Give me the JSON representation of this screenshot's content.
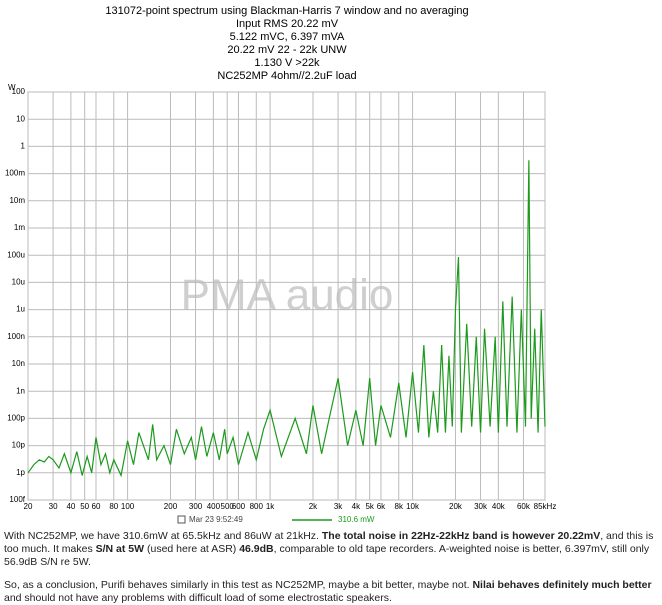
{
  "chart_data": {
    "type": "line",
    "title_lines": [
      "131072-point spectrum using Blackman-Harris 7 window and no averaging",
      "Input RMS 20.22 mV",
      "5.122 mVC, 6.397 mVA",
      "20.22 mV 22 - 22k UNW",
      "1.130 V >22k",
      "NC252MP 4ohm//2.2uF load"
    ],
    "y_label": "W",
    "watermark": "PMA audio",
    "legend_title": "Mar 23 9:52:49",
    "xscale": "log",
    "yscale": "log",
    "grid": true,
    "xlim": [
      20,
      85000
    ],
    "ylim": [
      1e-13,
      100
    ],
    "xticks": [
      20,
      30,
      40,
      50,
      60,
      80,
      100,
      200,
      300,
      400,
      500,
      600,
      800,
      {
        "value": 1000,
        "label": "1k"
      },
      {
        "value": 2000,
        "label": "2k"
      },
      {
        "value": 3000,
        "label": "3k"
      },
      {
        "value": 4000,
        "label": "4k"
      },
      {
        "value": 5000,
        "label": "5k"
      },
      {
        "value": 6000,
        "label": "6k"
      },
      {
        "value": 8000,
        "label": "8k"
      },
      {
        "value": 10000,
        "label": "10k"
      },
      {
        "value": 20000,
        "label": "20k"
      },
      {
        "value": 30000,
        "label": "30k"
      },
      {
        "value": 40000,
        "label": "40k"
      },
      {
        "value": 60000,
        "label": "60k"
      },
      {
        "value": 85000,
        "label": "85kHz"
      }
    ],
    "yticks": [
      100,
      10,
      1,
      {
        "value": 0.1,
        "label": "100m"
      },
      {
        "value": 0.01,
        "label": "10m"
      },
      {
        "value": 0.001,
        "label": "1m"
      },
      {
        "value": 0.0001,
        "label": "100u"
      },
      {
        "value": 1e-05,
        "label": "10u"
      },
      {
        "value": 1e-06,
        "label": "1u"
      },
      {
        "value": 1e-07,
        "label": "100n"
      },
      {
        "value": 1e-08,
        "label": "10n"
      },
      {
        "value": 1e-09,
        "label": "1n"
      },
      {
        "value": 1e-10,
        "label": "100p"
      },
      {
        "value": 1e-11,
        "label": "10p"
      },
      {
        "value": 1e-12,
        "label": "1p"
      },
      {
        "value": 1e-13,
        "label": "100f"
      }
    ],
    "x": [
      20,
      22,
      24,
      26,
      28,
      30,
      33,
      36,
      40,
      44,
      48,
      52,
      56,
      60,
      65,
      70,
      75,
      80,
      90,
      100,
      110,
      120,
      140,
      150,
      160,
      180,
      200,
      220,
      250,
      280,
      300,
      330,
      360,
      400,
      440,
      480,
      500,
      550,
      600,
      700,
      800,
      900,
      1000,
      1200,
      1500,
      1800,
      2000,
      2300,
      2600,
      3000,
      3500,
      4000,
      4500,
      5000,
      5500,
      6000,
      7000,
      8000,
      9000,
      10000,
      11000,
      12000,
      13000,
      14000,
      15000,
      16000,
      17000,
      18000,
      19000,
      20000,
      21000,
      22000,
      24000,
      26000,
      28000,
      30000,
      32000,
      35000,
      38000,
      40000,
      43000,
      46000,
      50000,
      54000,
      58000,
      62000,
      65500,
      68000,
      72000,
      76000,
      80000,
      85000
    ],
    "series": [
      {
        "name": "310.6 mW",
        "color": "#1c9a1c",
        "values": [
          1e-12,
          2e-12,
          3e-12,
          2.5e-12,
          4e-12,
          3e-12,
          1.5e-12,
          5e-12,
          1e-12,
          6e-12,
          8e-13,
          4e-12,
          1e-12,
          2e-11,
          2e-12,
          5e-12,
          1e-12,
          3e-12,
          8e-13,
          1.5e-11,
          2e-12,
          3e-11,
          3e-12,
          6e-11,
          3e-12,
          1e-11,
          2e-12,
          4e-11,
          5e-12,
          2e-11,
          3e-12,
          5e-11,
          4e-12,
          3e-11,
          3e-12,
          4e-11,
          5e-12,
          2e-11,
          2e-12,
          3e-11,
          3e-12,
          4e-11,
          2e-10,
          4e-12,
          1e-10,
          5e-12,
          3e-10,
          5e-12,
          1e-10,
          3e-09,
          1e-11,
          2e-10,
          1e-11,
          3e-09,
          1e-11,
          3e-10,
          2e-11,
          2e-09,
          2e-11,
          5e-09,
          3e-11,
          5e-08,
          2e-11,
          1e-09,
          3e-11,
          5e-08,
          3e-11,
          2e-08,
          5e-11,
          1e-06,
          8.6e-05,
          3e-11,
          3e-07,
          5e-11,
          1e-07,
          3e-11,
          2e-07,
          5e-11,
          1e-07,
          3e-11,
          2e-06,
          5e-11,
          3e-06,
          3e-11,
          1e-06,
          5e-11,
          0.3106,
          1e-10,
          2e-07,
          3e-11,
          1e-06,
          5e-11
        ]
      }
    ]
  },
  "post": {
    "paragraphs": [
      [
        {
          "text": "With NC252MP, we have 310.6mW at 65.5kHz and 86uW at 21kHz. ",
          "bold": false
        },
        {
          "text": "The total noise in 22Hz-22kHz band is however 20.22mV",
          "bold": true
        },
        {
          "text": ", and this is too much. It makes ",
          "bold": false
        },
        {
          "text": "S/N at 5W",
          "bold": true
        },
        {
          "text": " (used here at ASR) ",
          "bold": false
        },
        {
          "text": "46.9dB",
          "bold": true
        },
        {
          "text": ", comparable to old tape recorders. A-weighted noise is better, 6.397mV, still only 56.9dB S/N re 5W.",
          "bold": false
        }
      ],
      [
        {
          "text": "So, as a conclusion, Purifi behaves similarly in this test as NC252MP, maybe a bit better, maybe not. ",
          "bold": false
        },
        {
          "text": "Nilai behaves definitely much better",
          "bold": true
        },
        {
          "text": " and should not have any problems with difficult load of some electrostatic speakers.",
          "bold": false
        }
      ]
    ]
  }
}
